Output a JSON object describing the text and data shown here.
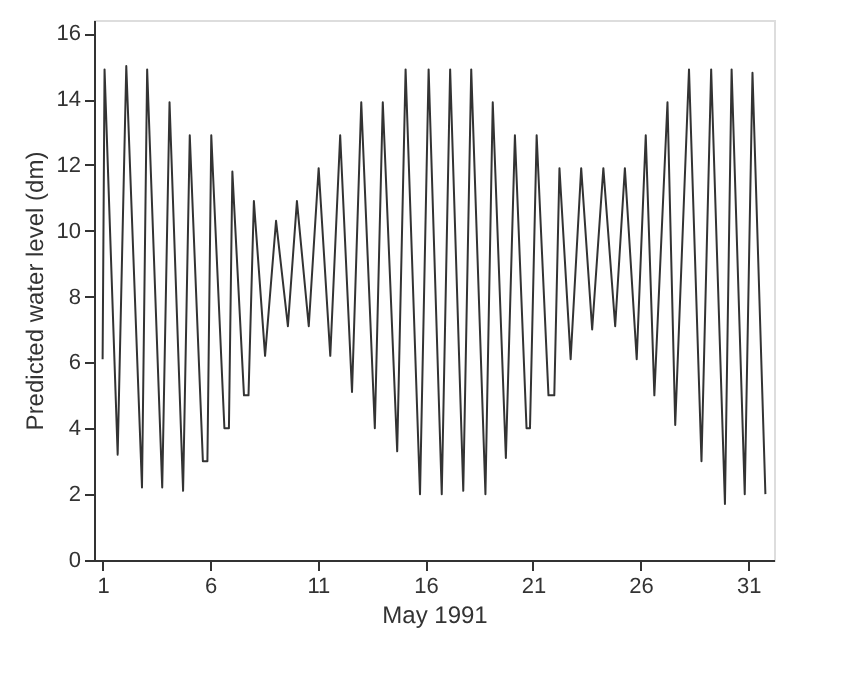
{
  "chart_data": {
    "type": "line",
    "xlabel": "May 1991",
    "ylabel": "Predicted water level (dm)",
    "x": [
      1.0,
      1.09,
      1.7,
      2.1,
      2.83,
      3.07,
      3.77,
      4.11,
      4.74,
      5.05,
      5.66,
      5.87,
      6.05,
      6.66,
      6.87,
      7.03,
      7.57,
      7.78,
      8.03,
      8.55,
      9.06,
      9.61,
      10.03,
      10.58,
      11.04,
      11.58,
      12.04,
      12.59,
      13.02,
      13.65,
      14.02,
      14.69,
      15.08,
      15.75,
      16.15,
      16.76,
      17.15,
      17.76,
      18.13,
      18.79,
      19.13,
      19.74,
      20.16,
      20.7,
      20.86,
      21.17,
      21.72,
      21.99,
      22.23,
      22.75,
      23.24,
      23.75,
      24.27,
      24.82,
      25.27,
      25.82,
      26.24,
      26.64,
      27.25,
      27.61,
      28.25,
      28.83,
      29.28,
      29.92,
      30.23,
      30.84,
      31.2,
      31.8
    ],
    "series": [
      {
        "color": "#333333",
        "values": [
          6.1,
          14.9,
          3.2,
          15.0,
          2.2,
          14.9,
          2.2,
          13.9,
          2.1,
          12.9,
          3.0,
          3.0,
          12.9,
          4.0,
          4.0,
          11.8,
          5.0,
          5.0,
          10.9,
          6.2,
          10.3,
          7.1,
          10.9,
          7.1,
          11.9,
          6.2,
          12.9,
          5.1,
          13.9,
          4.0,
          13.9,
          3.3,
          14.9,
          2.0,
          14.9,
          2.0,
          14.9,
          2.1,
          14.9,
          2.0,
          13.9,
          3.1,
          12.9,
          4.0,
          4.0,
          12.9,
          5.0,
          5.0,
          11.9,
          6.1,
          11.9,
          7.0,
          11.9,
          7.1,
          11.9,
          6.1,
          12.9,
          5.0,
          13.9,
          4.1,
          14.9,
          3.0,
          14.9,
          1.7,
          14.9,
          2.0,
          14.8,
          2.0
        ]
      }
    ],
    "xlim": [
      0.6,
      32.2
    ],
    "xticks": [
      1,
      6,
      11,
      16,
      21,
      26,
      31
    ],
    "ylim": [
      0,
      16.4
    ],
    "yticks": [
      0,
      2,
      4,
      6,
      8,
      10,
      12,
      14,
      16
    ],
    "grid": false,
    "legend": false,
    "marker": "none",
    "line_style": "solid"
  }
}
